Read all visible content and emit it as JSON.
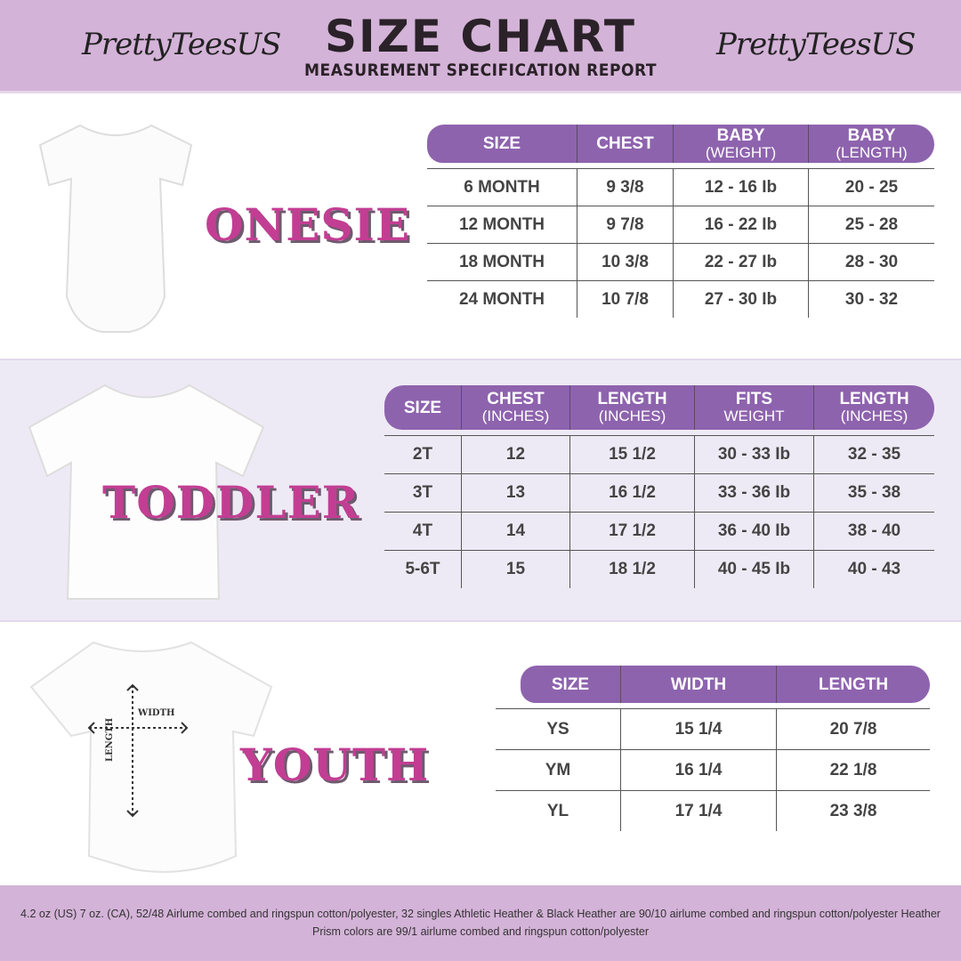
{
  "header": {
    "brand_left": "PrettyTeesUS",
    "brand_right": "PrettyTeesUS",
    "title": "SIZE CHART",
    "subtitle": "MEASUREMENT SPECIFICATION REPORT"
  },
  "colors": {
    "band": "#d4b3d8",
    "table_header": "#8e63ae",
    "category_text": "#c23e93",
    "mid_band": "#eeeaf5"
  },
  "onesie": {
    "label": "ONESIE",
    "columns": [
      {
        "label": "SIZE"
      },
      {
        "label": "CHEST"
      },
      {
        "label": "BABY",
        "sub": "(WEIGHT)"
      },
      {
        "label": "BABY",
        "sub": "(LENGTH)"
      }
    ],
    "rows": [
      [
        "6 MONTH",
        "9 3/8",
        "12 - 16 Ib",
        "20 - 25"
      ],
      [
        "12 MONTH",
        "9 7/8",
        "16 - 22 Ib",
        "25 - 28"
      ],
      [
        "18  MONTH",
        "10 3/8",
        "22 - 27 Ib",
        "28 - 30"
      ],
      [
        "24 MONTH",
        "10 7/8",
        "27 - 30 Ib",
        "30 - 32"
      ]
    ]
  },
  "toddler": {
    "label": "TODDLER",
    "columns": [
      {
        "label": "SIZE"
      },
      {
        "label": "CHEST",
        "sub": "(INCHES)"
      },
      {
        "label": "LENGTH",
        "sub": "(INCHES)"
      },
      {
        "label": "FITS",
        "sub": "WEIGHT"
      },
      {
        "label": "LENGTH",
        "sub": "(INCHES)"
      }
    ],
    "rows": [
      [
        "2T",
        "12",
        "15 1/2",
        "30 - 33  Ib",
        "32 - 35"
      ],
      [
        "3T",
        "13",
        "16 1/2",
        "33 - 36 Ib",
        "35 - 38"
      ],
      [
        "4T",
        "14",
        "17 1/2",
        "36 - 40 Ib",
        "38 - 40"
      ],
      [
        "5-6T",
        "15",
        "18 1/2",
        "40 - 45 Ib",
        "40 - 43"
      ]
    ]
  },
  "youth": {
    "label": "YOUTH",
    "diagram": {
      "width": "WIDTH",
      "length": "LENGTH"
    },
    "columns": [
      {
        "label": "SIZE"
      },
      {
        "label": "WIDTH"
      },
      {
        "label": "LENGTH"
      }
    ],
    "rows": [
      [
        "YS",
        "15 1/4",
        "20 7/8"
      ],
      [
        "YM",
        "16 1/4",
        "22 1/8"
      ],
      [
        "YL",
        "17 1/4",
        "23 3/8"
      ]
    ]
  },
  "footer": {
    "text": "4.2 oz (US) 7 oz. (CA), 52/48 Airlume combed and ringspun cotton/polyester, 32 singles Athletic Heather & Black Heather are 90/10 airlume combed and ringspun cotton/polyester Heather Prism colors are 99/1 airlume combed and ringspun cotton/polyester"
  }
}
